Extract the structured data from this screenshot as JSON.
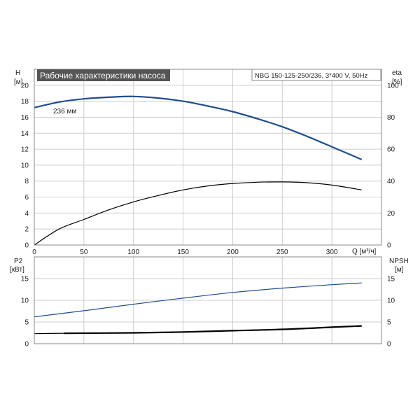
{
  "title": "Рабочие характеристики насоса",
  "model": "NBG 150-125-250/236, 3*400 V, 50Hz",
  "colors": {
    "head": "#1f4e8c",
    "eff": "#000000",
    "p2": "#1f4e8c",
    "npsh": "#000000",
    "grid": "#cccccc",
    "frame": "#888888",
    "title_bg": "#555555"
  },
  "chart_data": [
    {
      "type": "line",
      "x_axis": {
        "label": "Q [м³/ч]",
        "range": [
          0,
          350
        ],
        "ticks": [
          0,
          50,
          100,
          150,
          200,
          250,
          300
        ]
      },
      "y_left": {
        "label_top": "H",
        "label_unit": "[м]",
        "range": [
          0,
          22
        ],
        "ticks": [
          0,
          2,
          4,
          6,
          8,
          10,
          12,
          14,
          16,
          18,
          20
        ]
      },
      "y_right": {
        "label_top": "eta",
        "label_unit": "[%]",
        "range": [
          0,
          110
        ],
        "ticks": [
          0,
          20,
          40,
          60,
          80,
          100
        ]
      },
      "series": [
        {
          "name": "236 мм",
          "axis": "left",
          "color": "#1f4e8c",
          "x": [
            0,
            25,
            50,
            75,
            100,
            125,
            150,
            175,
            200,
            225,
            250,
            275,
            300,
            330
          ],
          "y": [
            17.2,
            17.9,
            18.3,
            18.5,
            18.6,
            18.4,
            18.0,
            17.4,
            16.7,
            15.8,
            14.8,
            13.6,
            12.3,
            10.7
          ]
        },
        {
          "axis": "right",
          "color": "#000000",
          "x": [
            0,
            25,
            50,
            75,
            100,
            125,
            150,
            175,
            200,
            225,
            250,
            275,
            300,
            330
          ],
          "y": [
            0,
            10,
            16,
            22,
            27,
            31,
            34.5,
            37,
            38.5,
            39.3,
            39.5,
            39,
            37.5,
            34.5
          ]
        }
      ]
    },
    {
      "type": "line",
      "x_axis": {
        "range": [
          0,
          350
        ],
        "ticks": [
          0,
          50,
          100,
          150,
          200,
          250,
          300
        ]
      },
      "y_left": {
        "label_top": "P2",
        "label_unit": "[кВт]",
        "range": [
          0,
          20
        ],
        "ticks": [
          0,
          5,
          10,
          15
        ]
      },
      "y_right": {
        "label_top": "NPSH",
        "label_unit": "[м]",
        "range": [
          0,
          20
        ],
        "ticks": [
          0,
          5,
          10,
          15
        ]
      },
      "series": [
        {
          "axis": "left",
          "color": "#1f4e8c",
          "x": [
            0,
            50,
            100,
            150,
            200,
            250,
            300,
            330
          ],
          "y": [
            6.2,
            7.6,
            9.1,
            10.5,
            11.8,
            12.8,
            13.6,
            14.0
          ]
        },
        {
          "axis": "right",
          "color": "#000000",
          "x": [
            30,
            100,
            150,
            200,
            250,
            300,
            330
          ],
          "y": [
            2.4,
            2.5,
            2.7,
            3.0,
            3.3,
            3.8,
            4.1
          ]
        },
        {
          "axis": "left",
          "color": "#000000",
          "x": [
            0,
            30
          ],
          "y": [
            2.3,
            2.4
          ]
        }
      ]
    }
  ]
}
